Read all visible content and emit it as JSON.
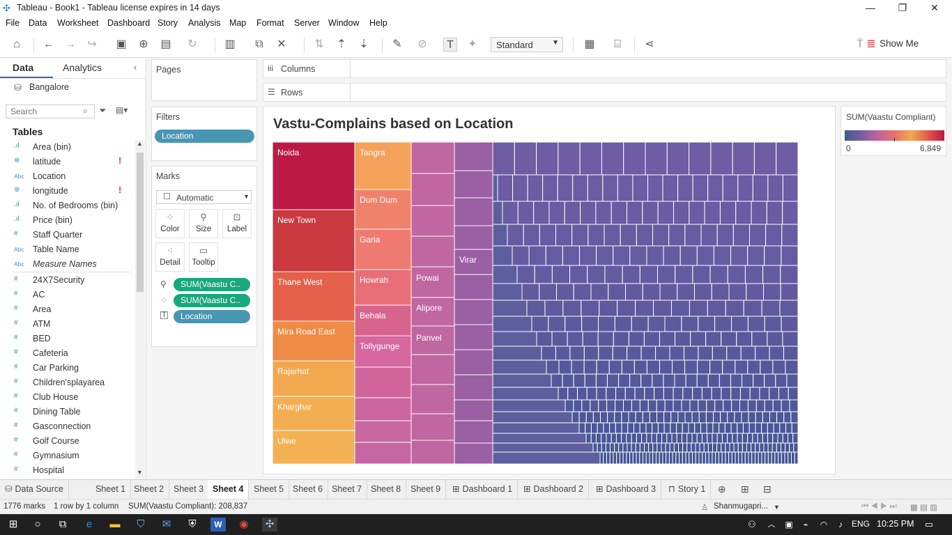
{
  "window": {
    "title": "Tableau - Book1 - Tableau license expires in 14 days"
  },
  "menu": [
    "File",
    "Data",
    "Worksheet",
    "Dashboard",
    "Story",
    "Analysis",
    "Map",
    "Format",
    "Server",
    "Window",
    "Help"
  ],
  "toolbar": {
    "fit": "Standard",
    "show_me": "Show Me"
  },
  "left": {
    "tab_data": "Data",
    "tab_analytics": "Analytics",
    "datasource": "Bangalore",
    "search_placeholder": "Search",
    "tables_header": "Tables",
    "fields": [
      {
        "name": "Area (bin)",
        "type": "measure"
      },
      {
        "name": "latitude",
        "type": "geo",
        "warn": "!"
      },
      {
        "name": "Location",
        "type": "abc"
      },
      {
        "name": "longitude",
        "type": "geo",
        "warn": "!"
      },
      {
        "name": "No. of Bedrooms (bin)",
        "type": "measure"
      },
      {
        "name": "Price (bin)",
        "type": "measure"
      },
      {
        "name": "Staff Quarter",
        "type": "num"
      },
      {
        "name": "Table Name",
        "type": "abc"
      },
      {
        "name": "Measure Names",
        "type": "abc",
        "italic": true
      },
      {
        "name": "24X7Security",
        "type": "num"
      },
      {
        "name": "AC",
        "type": "num"
      },
      {
        "name": "Area",
        "type": "num"
      },
      {
        "name": "ATM",
        "type": "num"
      },
      {
        "name": "BED",
        "type": "num"
      },
      {
        "name": "Cafeteria",
        "type": "num"
      },
      {
        "name": "Car Parking",
        "type": "num"
      },
      {
        "name": "Children'splayarea",
        "type": "num"
      },
      {
        "name": "Club House",
        "type": "num"
      },
      {
        "name": "Dining Table",
        "type": "num"
      },
      {
        "name": "Gasconnection",
        "type": "num"
      },
      {
        "name": "Golf Course",
        "type": "num"
      },
      {
        "name": "Gymnasium",
        "type": "num"
      },
      {
        "name": "Hospital",
        "type": "num"
      }
    ]
  },
  "shelves": {
    "pages": "Pages",
    "filters": "Filters",
    "filter_pill": "Location",
    "marks": "Marks",
    "mark_type": "Automatic",
    "buttons": [
      "Color",
      "Size",
      "Label",
      "Detail",
      "Tooltip"
    ],
    "mark_pills": [
      "SUM(Vaastu C..",
      "SUM(Vaastu C..",
      "Location"
    ],
    "columns": "Columns",
    "rows": "Rows"
  },
  "view": {
    "title": "Vastu-Complains based on Location"
  },
  "legend": {
    "title": "SUM(Vaastu Compliant)",
    "min": "0",
    "max": "6,849"
  },
  "chart_data": {
    "type": "treemap",
    "title": "Vastu-Complains based on Location",
    "labeled_cells": [
      "Noida",
      "New Town",
      "Thane West",
      "Mira Road East",
      "Rajarhat",
      "Kharghar",
      "Ulwe",
      "Tangra",
      "Dum Dum",
      "Garia",
      "Howrah",
      "Behala",
      "Tollygunge",
      "Powai",
      "Alipore",
      "Panvel",
      "Virar"
    ],
    "color_range": [
      0,
      6849
    ],
    "colors": {
      "low": "#3f5d93",
      "mid": "#f2a84f",
      "high": "#c0133e"
    }
  },
  "sheets": [
    "Data Source",
    "Sheet 1",
    "Sheet 2",
    "Sheet 3",
    "Sheet 4",
    "Sheet 5",
    "Sheet 6",
    "Sheet 7",
    "Sheet 8",
    "Sheet 9",
    "Dashboard 1",
    "Dashboard 2",
    "Dashboard 3",
    "Story 1"
  ],
  "active_sheet": "Sheet 4",
  "status": {
    "marks": "1776 marks",
    "dims": "1 row by 1 column",
    "sum": "SUM(Vaastu Compliant): 208,837",
    "user": "Shanmugapri..."
  },
  "taskbar": {
    "lang": "ENG",
    "time": "10:25 PM"
  }
}
